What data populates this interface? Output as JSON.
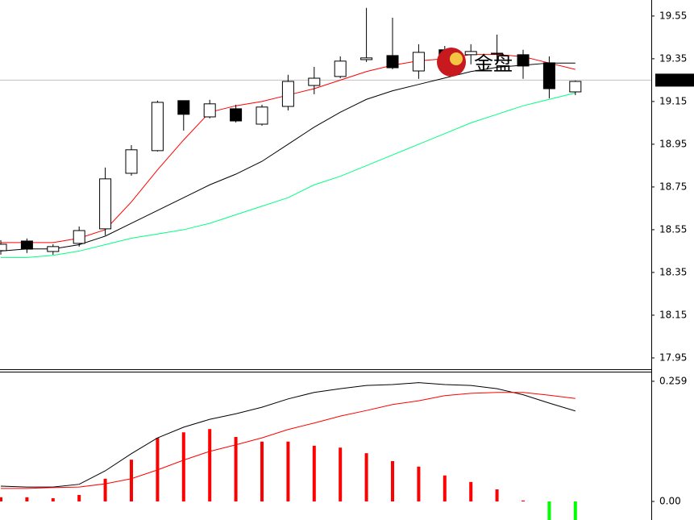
{
  "chart_data": [
    {
      "type": "candlestick",
      "open": [
        18.452,
        18.497,
        18.448,
        18.486,
        18.554,
        18.814,
        18.92,
        19.154,
        19.078,
        19.116,
        19.044,
        19.127,
        19.225,
        19.267,
        19.346,
        19.365,
        19.293,
        19.392,
        19.369,
        19.373,
        19.369,
        19.331,
        19.195
      ],
      "high": [
        18.501,
        18.509,
        18.482,
        18.565,
        18.841,
        18.946,
        19.154,
        19.154,
        19.158,
        19.135,
        19.135,
        19.275,
        19.312,
        19.361,
        19.588,
        19.542,
        19.418,
        19.41,
        19.418,
        19.463,
        19.392,
        19.361,
        19.248
      ],
      "low": [
        18.433,
        18.441,
        18.433,
        18.471,
        18.524,
        18.803,
        18.916,
        19.014,
        19.071,
        19.052,
        19.037,
        19.108,
        19.184,
        19.259,
        19.335,
        19.301,
        19.256,
        19.305,
        19.324,
        19.324,
        19.256,
        19.165,
        19.18
      ],
      "close": [
        18.482,
        18.459,
        18.471,
        18.546,
        18.788,
        18.924,
        19.146,
        19.09,
        19.139,
        19.059,
        19.124,
        19.244,
        19.259,
        19.339,
        19.354,
        19.308,
        19.38,
        19.346,
        19.384,
        19.376,
        19.316,
        19.21,
        19.244
      ],
      "series": [
        {
          "color": "#ff0000",
          "values": [
            18.49,
            18.49,
            18.49,
            18.51,
            18.55,
            18.68,
            18.83,
            18.97,
            19.1,
            19.13,
            19.15,
            19.18,
            19.21,
            19.25,
            19.29,
            19.32,
            19.34,
            19.35,
            19.37,
            19.37,
            19.36,
            19.33,
            19.3
          ]
        },
        {
          "color": "#000000",
          "values": [
            18.45,
            18.46,
            18.46,
            18.48,
            18.52,
            18.58,
            18.64,
            18.7,
            18.76,
            18.81,
            18.87,
            18.95,
            19.03,
            19.1,
            19.16,
            19.2,
            19.23,
            19.26,
            19.29,
            19.31,
            19.32,
            19.33,
            19.33
          ]
        },
        {
          "color": "#00ff7f",
          "values": [
            18.42,
            18.42,
            18.43,
            18.45,
            18.48,
            18.51,
            18.53,
            18.55,
            18.58,
            18.62,
            18.66,
            18.7,
            18.76,
            18.8,
            18.85,
            18.9,
            18.95,
            19.0,
            19.05,
            19.09,
            19.13,
            19.16,
            19.19
          ]
        }
      ],
      "last_price": 19.25,
      "ylim": [
        17.897,
        19.625
      ],
      "yticks": [
        19.55,
        19.35,
        19.15,
        18.95,
        18.75,
        18.55,
        18.35,
        18.15,
        17.95
      ]
    },
    {
      "type": "macd",
      "values": [
        0.009,
        0.009,
        0.007,
        0.014,
        0.049,
        0.09,
        0.137,
        0.149,
        0.156,
        0.139,
        0.129,
        0.129,
        0.12,
        0.116,
        0.104,
        0.087,
        0.075,
        0.056,
        0.042,
        0.026,
        0.002,
        -0.04,
        -0.04
      ],
      "color_positive": "#ff0000",
      "color_negative": "#00ff00",
      "series": [
        {
          "color": "#000000",
          "values": [
            0.033,
            0.031,
            0.031,
            0.037,
            0.066,
            0.103,
            0.137,
            0.16,
            0.177,
            0.189,
            0.203,
            0.221,
            0.235,
            0.243,
            0.25,
            0.252,
            0.256,
            0.252,
            0.25,
            0.243,
            0.23,
            0.212,
            0.195
          ]
        },
        {
          "color": "#ff0000",
          "values": [
            0.028,
            0.028,
            0.03,
            0.031,
            0.038,
            0.049,
            0.068,
            0.089,
            0.108,
            0.122,
            0.137,
            0.155,
            0.169,
            0.184,
            0.196,
            0.209,
            0.217,
            0.228,
            0.233,
            0.235,
            0.235,
            0.229,
            0.222
          ]
        }
      ],
      "ylim": [
        -0.04,
        0.278
      ],
      "yticks": [
        0.259,
        {
          "value": 0,
          "label": "0.00"
        }
      ]
    }
  ],
  "watermark": "金盘"
}
